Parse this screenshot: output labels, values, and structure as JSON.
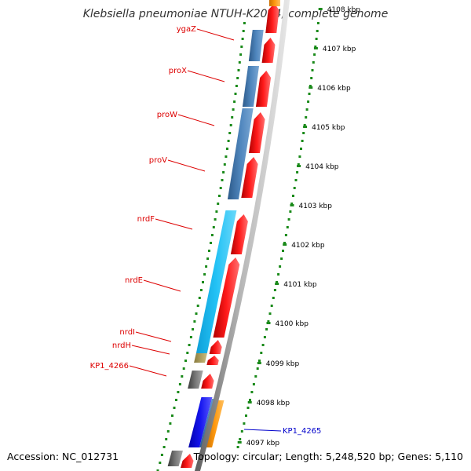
{
  "title": "Klebsiella pneumoniae NTUH-K2044, complete genome",
  "footer": {
    "accession": "Accession: NC_012731",
    "topology": "Topology: circular; Length: 5,248,520 bp; Genes: 5,110"
  },
  "colors": {
    "backbone": "#8c8c8c",
    "tick_dots": "#1a8a1a",
    "gene_label_red": "#dd0000",
    "gene_label_blue": "#0000cc",
    "cds_forward": "#ff0000",
    "cds_reverse_steel": "#4a7fb5",
    "cds_reverse_cyan": "#22b8ee",
    "cds_reverse_gray": "#666666",
    "cds_reverse_olive": "#b0a060",
    "cds_blue": "#1010ee",
    "cds_orange": "#ff9900"
  },
  "genes": [
    {
      "label": "ygaZ",
      "color": "red"
    },
    {
      "label": "proX",
      "color": "red"
    },
    {
      "label": "proW",
      "color": "red"
    },
    {
      "label": "proV",
      "color": "red"
    },
    {
      "label": "nrdF",
      "color": "red"
    },
    {
      "label": "nrdE",
      "color": "red"
    },
    {
      "label": "nrdI",
      "color": "red"
    },
    {
      "label": "nrdH",
      "color": "red"
    },
    {
      "label": "KP1_4266",
      "color": "red"
    },
    {
      "label": "KP1_4265",
      "color": "blue"
    }
  ],
  "ticks": [
    {
      "label": "4108 kbp"
    },
    {
      "label": "4107 kbp"
    },
    {
      "label": "4106 kbp"
    },
    {
      "label": "4105 kbp"
    },
    {
      "label": "4104 kbp"
    },
    {
      "label": "4103 kbp"
    },
    {
      "label": "4102 kbp"
    },
    {
      "label": "4101 kbp"
    },
    {
      "label": "4100 kbp"
    },
    {
      "label": "4099 kbp"
    },
    {
      "label": "4098 kbp"
    },
    {
      "label": "4097 kbp"
    }
  ]
}
